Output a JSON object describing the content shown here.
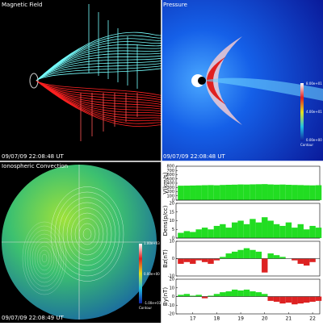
{
  "panels": {
    "magnetic_field": {
      "title": "Magnetic Field",
      "timestamp": "09/07/09 22:08:48 UT"
    },
    "pressure": {
      "title": "Pressure",
      "timestamp": "09/07/09 22:08:48 UT",
      "colorbar_labels": [
        "8.00e+01",
        "4.00e+01",
        "0.00e+00"
      ],
      "colorbar_caption": "Contour"
    },
    "ionosphere": {
      "title": "Ionospheric Convection",
      "timestamp": "09/07/09 22:08:49 UT",
      "colorbar_labels": [
        "1.00e+03",
        "0.00e+00",
        "-1.00e+03"
      ],
      "colorbar_caption": "Contour"
    }
  },
  "chart_data": [
    {
      "type": "area",
      "y_label": "V(km/s)",
      "color": "#22dd22",
      "negative_color": "#dd2222",
      "x": [
        16.5,
        16.75,
        17,
        17.25,
        17.5,
        17.75,
        18,
        18.25,
        18.5,
        18.75,
        19,
        19.25,
        19.5,
        19.75,
        20,
        20.25,
        20.5,
        20.75,
        21,
        21.25,
        21.5,
        21.75,
        22,
        22.25
      ],
      "values": [
        340,
        342,
        345,
        348,
        352,
        355,
        350,
        358,
        362,
        365,
        370,
        368,
        372,
        375,
        378,
        370,
        365,
        368,
        362,
        358,
        355,
        350,
        348,
        352
      ],
      "xlim": [
        16.3,
        22.3
      ],
      "ylim": [
        0,
        800
      ],
      "yticks": [
        0,
        100,
        200,
        300,
        400,
        500,
        600,
        700,
        800
      ]
    },
    {
      "type": "area",
      "y_label": "Dens(p/cc)",
      "color": "#22dd22",
      "negative_color": "#dd2222",
      "x": [
        16.5,
        16.75,
        17,
        17.25,
        17.5,
        17.75,
        18,
        18.25,
        18.5,
        18.75,
        19,
        19.25,
        19.5,
        19.75,
        20,
        20.25,
        20.5,
        20.75,
        21,
        21.25,
        21.5,
        21.75,
        22,
        22.25
      ],
      "values": [
        3,
        4,
        3.5,
        5,
        6,
        5,
        7,
        8,
        6,
        9,
        10,
        8,
        11,
        9,
        12,
        10,
        8,
        7,
        9,
        6,
        8,
        5,
        7,
        6
      ],
      "xlim": [
        16.3,
        22.3
      ],
      "ylim": [
        0,
        20
      ],
      "yticks": [
        0,
        5,
        10,
        15,
        20
      ]
    },
    {
      "type": "area",
      "y_label": "Bz(nT)",
      "color": "#22dd22",
      "negative_color": "#dd2222",
      "x": [
        16.5,
        16.75,
        17,
        17.25,
        17.5,
        17.75,
        18,
        18.25,
        18.5,
        18.75,
        19,
        19.25,
        19.5,
        19.75,
        20,
        20.25,
        20.5,
        20.75,
        21,
        21.25,
        21.5,
        21.75,
        22,
        22.25
      ],
      "values": [
        -3,
        -2,
        -3,
        -1,
        -2,
        -3,
        -1,
        1,
        3,
        4,
        5,
        6,
        5,
        4,
        -8,
        3,
        2,
        1,
        0,
        -1,
        -3,
        -4,
        -2,
        0
      ],
      "xlim": [
        16.3,
        22.3
      ],
      "ylim": [
        -10,
        10
      ],
      "yticks": [
        -10,
        0,
        10
      ]
    },
    {
      "type": "area",
      "y_label": "By(nT)",
      "color": "#22dd22",
      "negative_color": "#dd2222",
      "x": [
        16.5,
        16.75,
        17,
        17.25,
        17.5,
        17.75,
        18,
        18.25,
        18.5,
        18.75,
        19,
        19.25,
        19.5,
        19.75,
        20,
        20.25,
        20.5,
        20.75,
        21,
        21.25,
        21.5,
        21.75,
        22,
        22.25
      ],
      "values": [
        2,
        3,
        1,
        2,
        -2,
        1,
        3,
        5,
        6,
        8,
        7,
        8,
        6,
        5,
        3,
        -5,
        -6,
        -8,
        -7,
        -9,
        -8,
        -7,
        -6,
        -5
      ],
      "xlim": [
        16.3,
        22.3
      ],
      "ylim": [
        -20,
        20
      ],
      "yticks": [
        -20,
        -10,
        0,
        10,
        20
      ],
      "xticks": [
        17,
        18,
        19,
        20,
        21,
        22
      ]
    }
  ]
}
